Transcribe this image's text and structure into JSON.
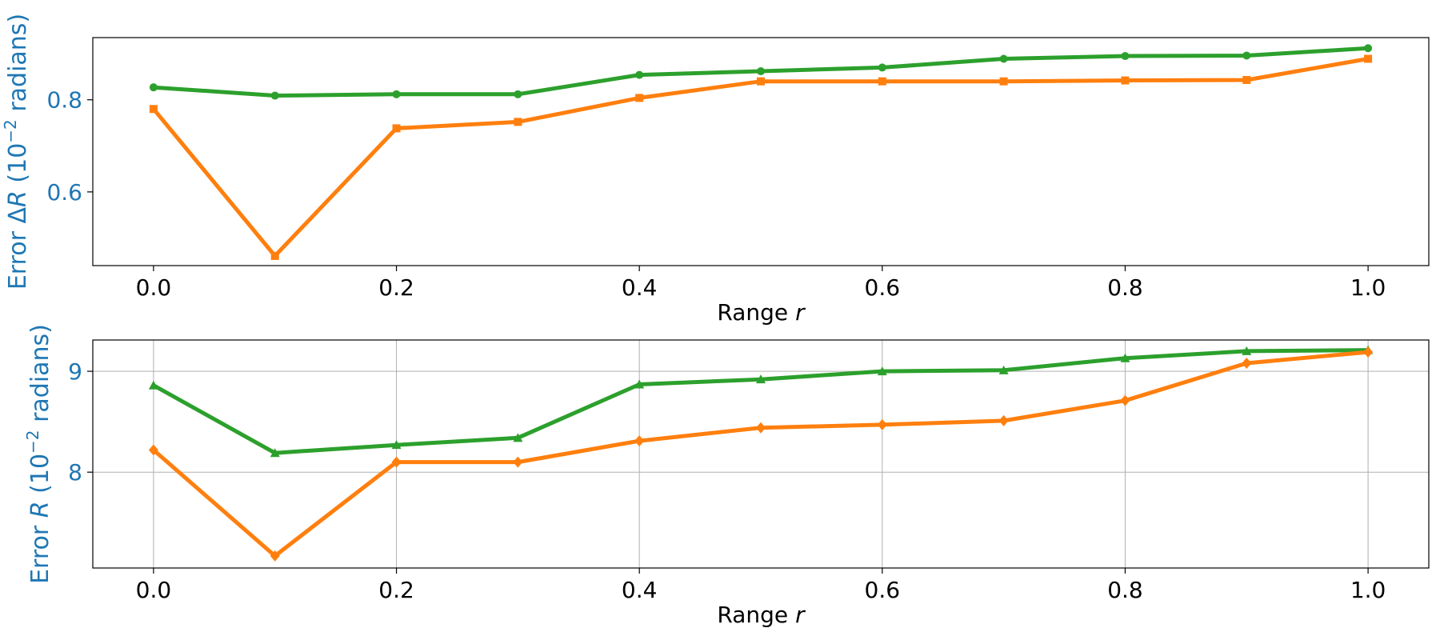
{
  "chart_data": [
    {
      "type": "line",
      "xlabel": "Range r",
      "ylabel": "Error ΔR (10⁻² radians)",
      "ylabel_color": "#1f77b4",
      "xlim": [
        -0.05,
        1.05
      ],
      "ylim": [
        0.44,
        0.935
      ],
      "xticks": [
        "0.0",
        "0.2",
        "0.4",
        "0.6",
        "0.8",
        "1.0"
      ],
      "yticks": [
        "0.6",
        "0.8"
      ],
      "grid": false,
      "x": [
        0.0,
        0.1,
        0.2,
        0.3,
        0.4,
        0.5,
        0.6,
        0.7,
        0.8,
        0.9,
        1.0
      ],
      "series": [
        {
          "color": "#2ca02c",
          "marker": "circle",
          "values": [
            0.827,
            0.809,
            0.812,
            0.812,
            0.854,
            0.862,
            0.87,
            0.889,
            0.895,
            0.896,
            0.912
          ]
        },
        {
          "color": "#ff7f0e",
          "marker": "square",
          "values": [
            0.78,
            0.461,
            0.738,
            0.752,
            0.804,
            0.84,
            0.84,
            0.84,
            0.842,
            0.843,
            0.889
          ]
        }
      ]
    },
    {
      "type": "line",
      "xlabel": "Range r",
      "ylabel": "Error R (10⁻² radians)",
      "ylabel_color": "#1f77b4",
      "xlim": [
        -0.05,
        1.05
      ],
      "ylim": [
        7.05,
        9.31
      ],
      "xticks": [
        "0.0",
        "0.2",
        "0.4",
        "0.6",
        "0.8",
        "1.0"
      ],
      "yticks": [
        "8",
        "9"
      ],
      "grid": true,
      "x": [
        0.0,
        0.1,
        0.2,
        0.3,
        0.4,
        0.5,
        0.6,
        0.7,
        0.8,
        0.9,
        1.0
      ],
      "series": [
        {
          "color": "#2ca02c",
          "marker": "triangle",
          "values": [
            8.86,
            8.19,
            8.27,
            8.34,
            8.87,
            8.92,
            9.0,
            9.01,
            9.13,
            9.2,
            9.21
          ]
        },
        {
          "color": "#ff7f0e",
          "marker": "diamond",
          "values": [
            8.22,
            7.17,
            8.1,
            8.1,
            8.31,
            8.44,
            8.47,
            8.51,
            8.71,
            9.08,
            9.19
          ]
        }
      ]
    }
  ]
}
